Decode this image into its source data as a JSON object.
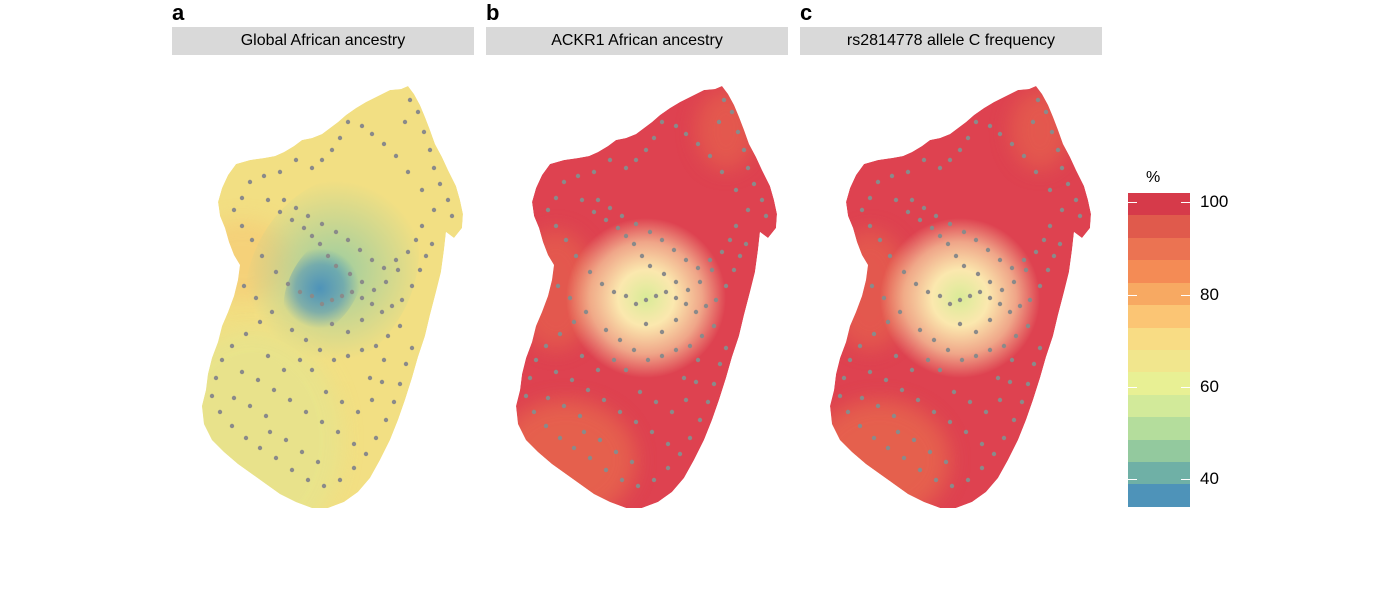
{
  "panels": [
    {
      "letter": "a",
      "title": "Global African ancestry",
      "mode": "global"
    },
    {
      "letter": "b",
      "title": "ACKR1 African ancestry",
      "mode": "ackr1"
    },
    {
      "letter": "c",
      "title": "rs2814778 allele C frequency",
      "mode": "rs"
    }
  ],
  "legend": {
    "title": "%",
    "labels": [
      {
        "value": 100,
        "text": "100"
      },
      {
        "value": 80,
        "text": "80"
      },
      {
        "value": 60,
        "text": "60"
      },
      {
        "value": 40,
        "text": "40"
      }
    ],
    "min": 34,
    "max": 102,
    "segment_colors": [
      "#d63a4a",
      "#e05a4c",
      "#eb7352",
      "#f48b55",
      "#f7a962",
      "#fbc574",
      "#f8dc84",
      "#f1e68d",
      "#e8f094",
      "#d2ea9a",
      "#b4dd9c",
      "#93c99e",
      "#6fb0a6",
      "#4e93b9"
    ]
  },
  "colors": {
    "global_base": "#f2df83",
    "global_west": "#e7e38c",
    "global_north": "#f5cd77",
    "global_center_mid": "#9ccda0",
    "global_center_core": "#4e93b9",
    "ackr_base": "#de4250",
    "ackr_south": "#e7684e",
    "ackr_halo": "#fbe8ae",
    "ackr_center": "#d9eb97",
    "dot": "#8a8a8a"
  }
}
